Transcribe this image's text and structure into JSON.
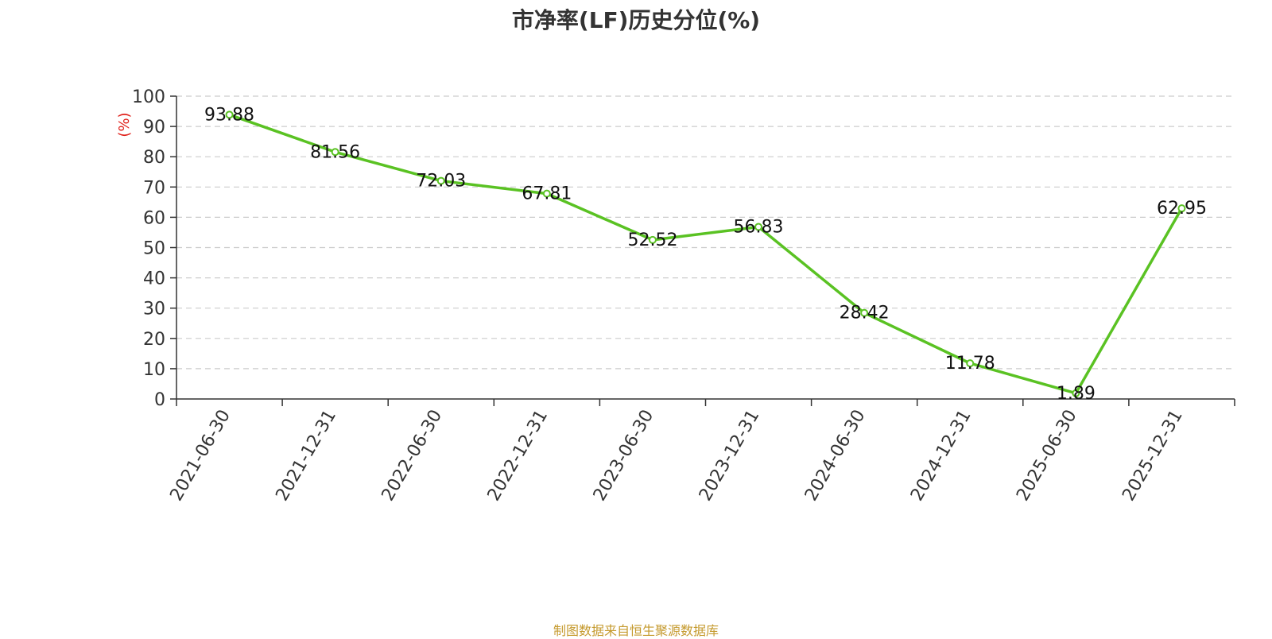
{
  "chart_data": {
    "type": "line",
    "title": "市净率(LF)历史分位(%)",
    "ylabel": "(%)",
    "xlabel": "",
    "categories": [
      "2021-06-30",
      "2021-12-31",
      "2022-06-30",
      "2022-12-31",
      "2023-06-30",
      "2023-12-31",
      "2024-06-30",
      "2024-12-31",
      "2025-06-30",
      "2025-12-31"
    ],
    "series": [
      {
        "values": [
          93.88,
          81.56,
          72.03,
          67.81,
          52.52,
          56.83,
          28.42,
          11.78,
          1.89,
          62.95
        ],
        "labels": [
          "93.88",
          "81.56",
          "72.03",
          "67.81",
          "52.52",
          "56.83",
          "28.42",
          "11.78",
          "1.89",
          "62.95"
        ],
        "color": "#5ac223"
      }
    ],
    "ylim": [
      0,
      100
    ],
    "yticks": [
      "0",
      "10",
      "20",
      "30",
      "40",
      "50",
      "60",
      "70",
      "80",
      "90",
      "100"
    ],
    "grid": true,
    "ylabel_color": "#e0201a"
  },
  "footer": {
    "source": "制图数据来自恒生聚源数据库"
  }
}
